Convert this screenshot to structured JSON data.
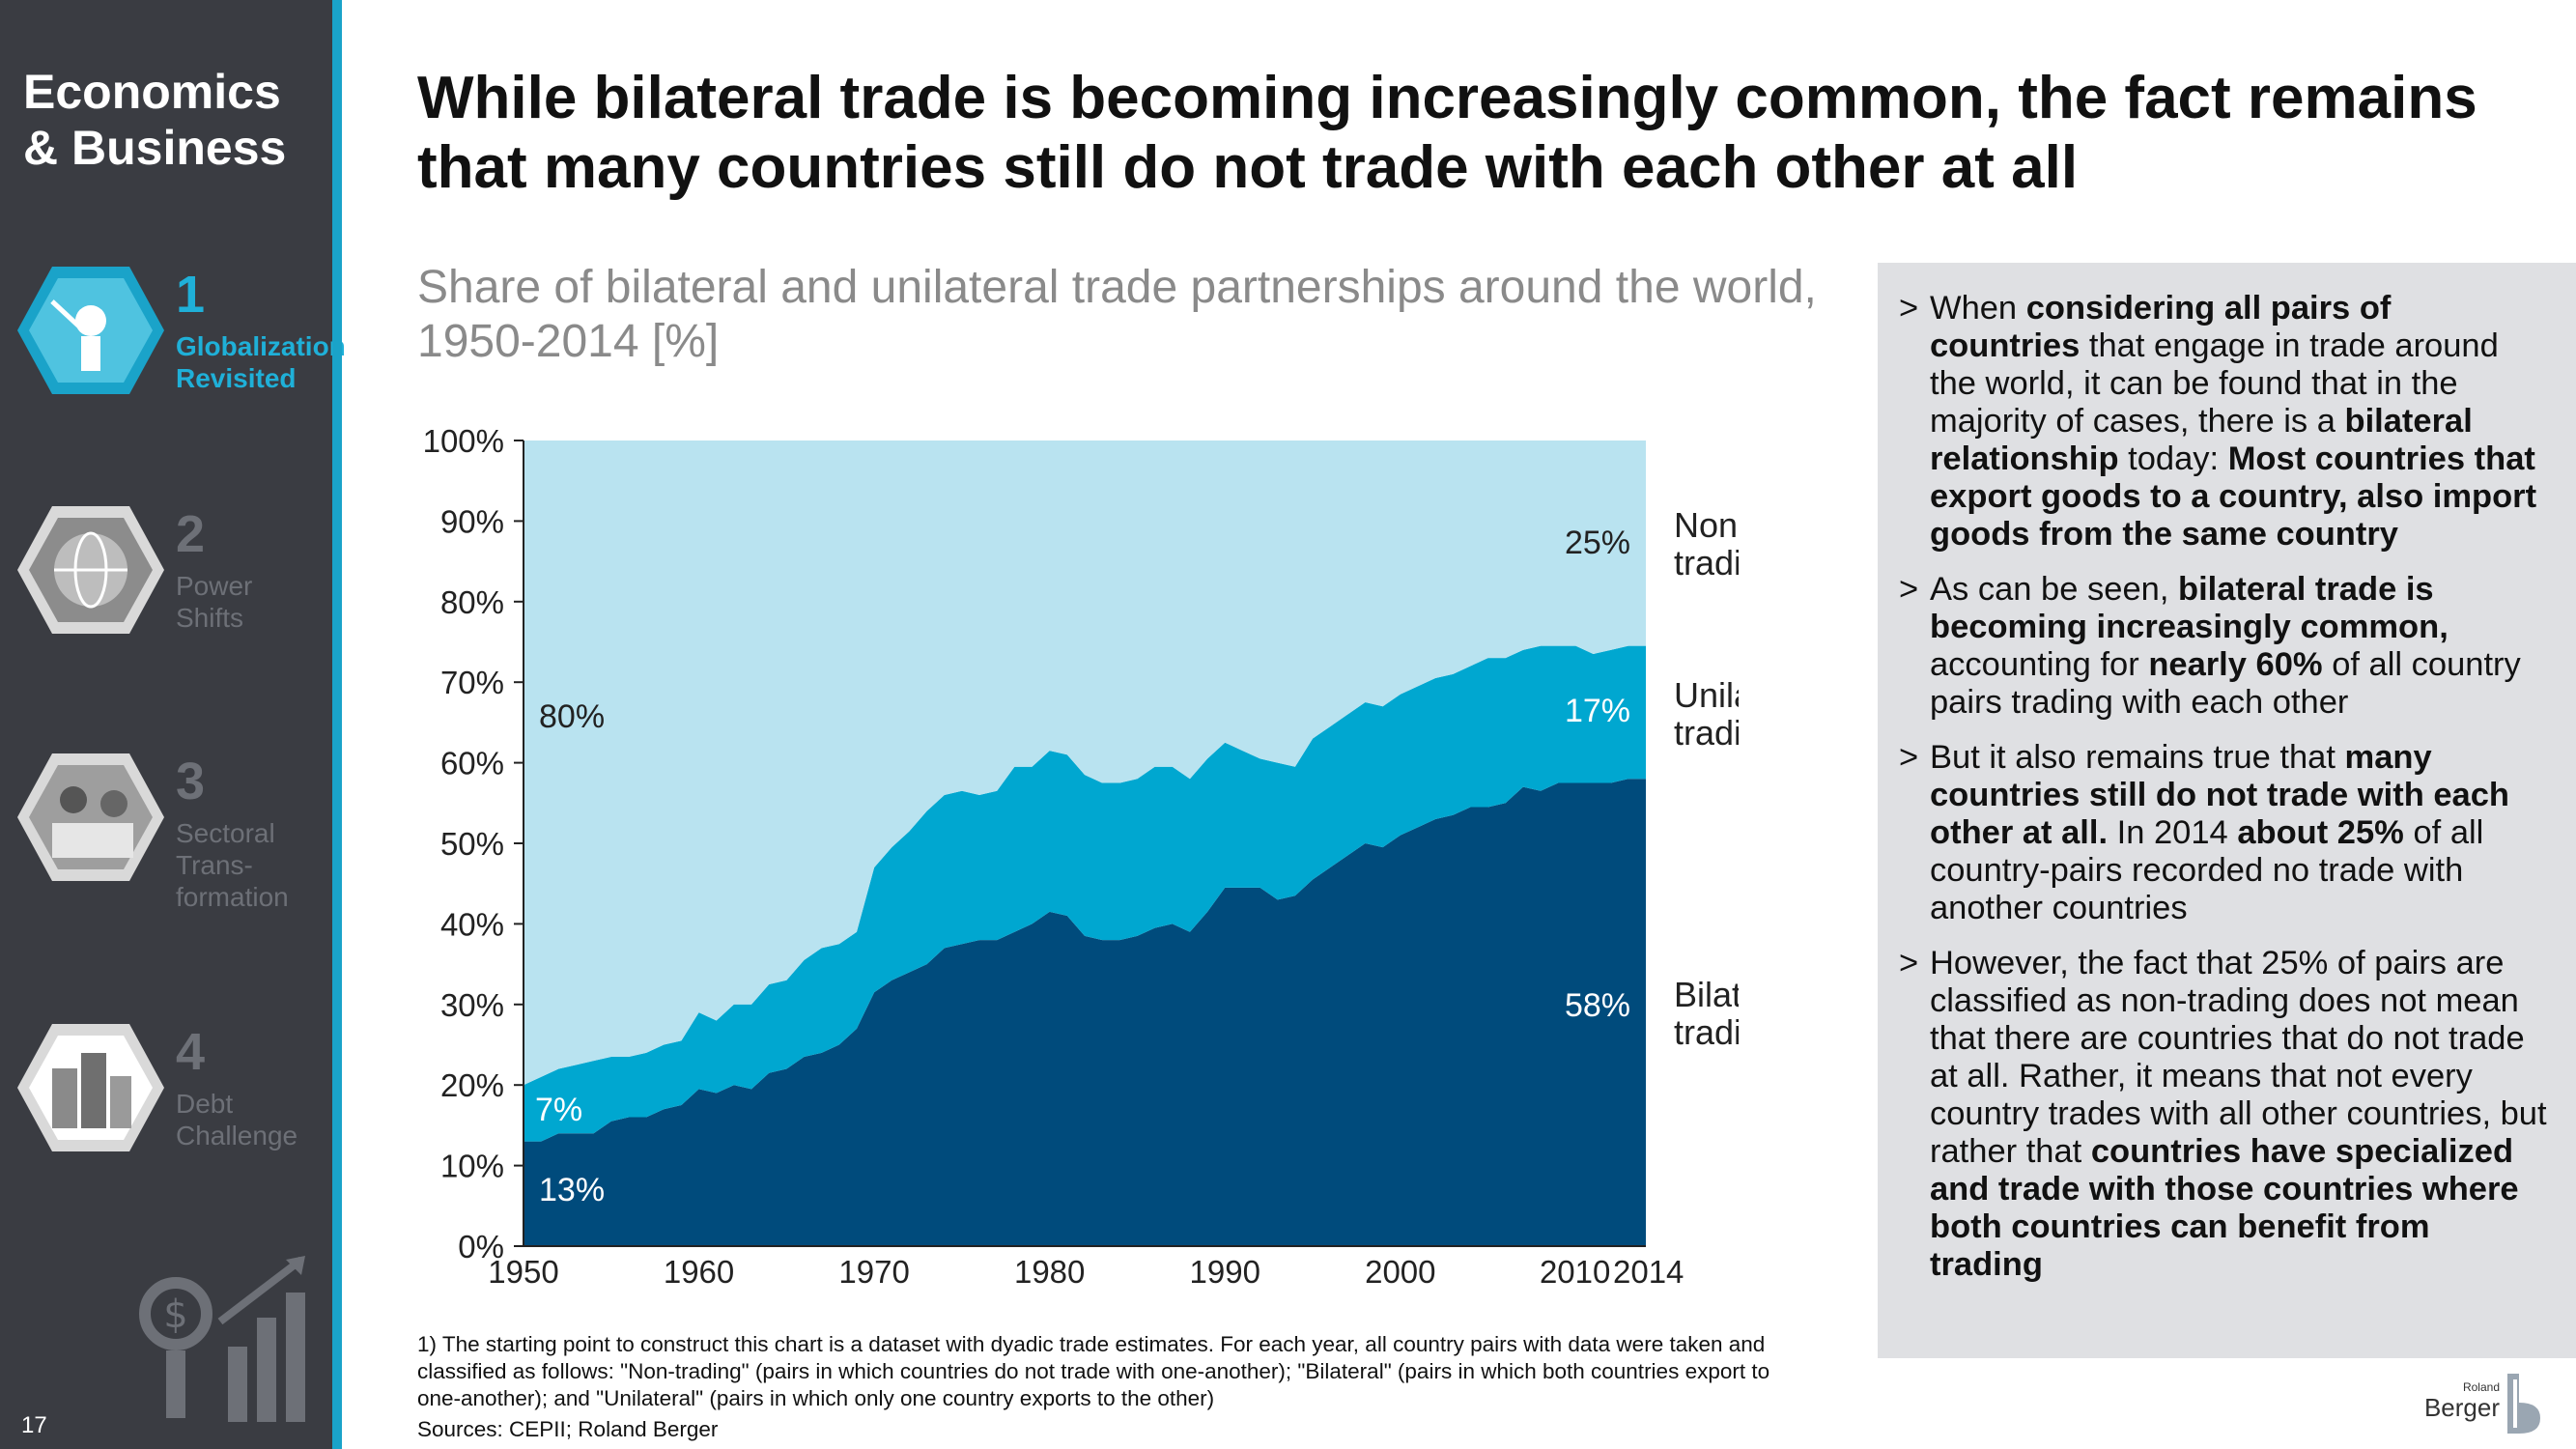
{
  "sidebar": {
    "section_title_line1": "Economics",
    "section_title_line2": "& Business",
    "items": [
      {
        "num": "1",
        "label_line1": "Globalization",
        "label_line2": "Revisited",
        "label_line3": ""
      },
      {
        "num": "2",
        "label_line1": "Power",
        "label_line2": "Shifts",
        "label_line3": ""
      },
      {
        "num": "3",
        "label_line1": "Sectoral",
        "label_line2": "Trans-",
        "label_line3": "formation"
      },
      {
        "num": "4",
        "label_line1": "Debt",
        "label_line2": "Challenge",
        "label_line3": ""
      }
    ],
    "page_number": "17"
  },
  "headline": "While bilateral trade is becoming increasingly common, the fact remains that many countries still do not trade with each other at all",
  "chart_data": {
    "type": "area",
    "stacked": true,
    "title": "Share of bilateral and unilateral trade partnerships around the world, 1950-2014 [%]",
    "ylim": [
      0,
      100
    ],
    "y_ticks": [
      "0%",
      "10%",
      "20%",
      "30%",
      "40%",
      "50%",
      "60%",
      "70%",
      "80%",
      "90%",
      "100%"
    ],
    "x_ticks": [
      "1950",
      "1960",
      "1970",
      "1980",
      "1990",
      "2000",
      "2010",
      "2014"
    ],
    "x": [
      1950,
      1951,
      1952,
      1953,
      1954,
      1955,
      1956,
      1957,
      1958,
      1959,
      1960,
      1961,
      1962,
      1963,
      1964,
      1965,
      1966,
      1967,
      1968,
      1969,
      1970,
      1971,
      1972,
      1973,
      1974,
      1975,
      1976,
      1977,
      1978,
      1979,
      1980,
      1981,
      1982,
      1983,
      1984,
      1985,
      1986,
      1987,
      1988,
      1989,
      1990,
      1991,
      1992,
      1993,
      1994,
      1995,
      1996,
      1997,
      1998,
      1999,
      2000,
      2001,
      2002,
      2003,
      2004,
      2005,
      2006,
      2007,
      2008,
      2009,
      2010,
      2011,
      2012,
      2013,
      2014
    ],
    "series": [
      {
        "name": "Bilateral trading",
        "color": "#004b7c",
        "values": [
          13,
          13,
          14,
          14,
          14,
          15.5,
          16,
          16,
          17,
          17.5,
          19.5,
          19,
          20,
          19.5,
          21.5,
          22,
          23.5,
          24,
          25,
          27,
          31.5,
          33,
          34,
          35,
          37,
          37.5,
          38,
          38,
          39,
          40,
          41.5,
          41,
          38.5,
          38,
          38,
          38.5,
          39.5,
          40,
          39,
          41.5,
          44.5,
          44.5,
          44.5,
          43,
          43.5,
          45.5,
          47,
          48.5,
          50,
          49.5,
          51,
          52,
          53,
          53.5,
          54.5,
          54.5,
          55,
          57,
          56.5,
          57.5,
          57.5,
          57.5,
          57.5,
          58,
          58
        ]
      },
      {
        "name": "Unilateral trading",
        "color": "#00a7d0",
        "values": [
          7,
          8,
          8,
          8.5,
          9,
          8,
          7.5,
          8,
          8,
          8,
          9.5,
          9,
          10,
          10.5,
          11,
          11,
          12,
          13,
          12.5,
          12,
          15.5,
          16.5,
          17.5,
          19,
          19,
          19,
          18,
          18.5,
          20.5,
          19.5,
          20,
          20,
          20,
          19.5,
          19.5,
          19.5,
          20,
          19.5,
          19,
          19,
          18,
          17,
          16,
          17,
          16,
          17.5,
          17.5,
          17.5,
          17.5,
          17.5,
          17.5,
          17.5,
          17.5,
          17.5,
          17.5,
          18.5,
          18,
          17,
          18,
          17,
          17,
          16,
          16.5,
          16.5,
          16.5
        ]
      },
      {
        "name": "Non-trading",
        "color": "#b9e3f0",
        "values": [
          80,
          79,
          78,
          77.5,
          77,
          76.5,
          76.5,
          76,
          75,
          74.5,
          71,
          72,
          70,
          70,
          67.5,
          67,
          64.5,
          63,
          62.5,
          61,
          53,
          50.5,
          48.5,
          46,
          44,
          43.5,
          44,
          43.5,
          40.5,
          40.5,
          38.5,
          39,
          41.5,
          42.5,
          42.5,
          42,
          40.5,
          40.5,
          42,
          39.5,
          37.5,
          38.5,
          39.5,
          40,
          40.5,
          37,
          35.5,
          34,
          32.5,
          33,
          31.5,
          30.5,
          29.5,
          29,
          28,
          27,
          27,
          26,
          25.5,
          25.5,
          25.5,
          26.5,
          26,
          25.5,
          25.5
        ]
      }
    ],
    "annotations": {
      "nontrading_start": "80%",
      "unilateral_start": "7%",
      "bilateral_start": "13%",
      "nontrading_end": "25%",
      "unilateral_end": "17%",
      "bilateral_end": "58%"
    },
    "legend": {
      "nontrading_line1": "Non-",
      "nontrading_line2": "trading",
      "unilateral_line1": "Unilateral",
      "unilateral_line2": "trading",
      "bilateral_line1": "Bilateral",
      "bilateral_line2": "trading"
    }
  },
  "footnote": "1) The starting point to construct this chart is a dataset with dyadic trade estimates. For each year, all country pairs with data were taken and classified as follows: \"Non-trading\" (pairs in which countries do not trade with one-another); \"Bilateral\" (pairs in which both countries export to one-another); and \"Unilateral\" (pairs in which only one country exports to the other)",
  "sources": "Sources: CEPII; Roland Berger",
  "panel": {
    "b1": [
      "When ",
      "considering all pairs of countries",
      " that engage in trade around the world, it can be found that in the majority of cases, there is a ",
      "bilateral relationship",
      " today: ",
      "Most countries that export goods to a country, also import goods from the same country",
      ""
    ],
    "b2": [
      "As can be seen, ",
      "bilateral trade is becoming increasingly common,",
      " accounting for ",
      "nearly 60%",
      " of all country pairs trading with each other"
    ],
    "b3": [
      "But it also remains true that ",
      "many countries still do not trade with each other at all.",
      " In 2014 ",
      "about 25%",
      " of all country-pairs recorded no trade with another countries"
    ],
    "b4": [
      "However, the fact that 25% of pairs are classified as non-trading does not mean that there are countries that do not trade at all. Rather, it means that not every country trades with all other countries, but rather that ",
      "countries have specialized and trade with those countries where both countries can benefit from trading",
      ""
    ]
  },
  "logo": {
    "small": "Roland",
    "large": "Berger"
  },
  "colors": {
    "sidebar": "#3a3c42",
    "accent": "#1aa3c9",
    "bilateral": "#004b7c",
    "unilateral": "#00a7d0",
    "nontrading": "#b9e3f0"
  }
}
